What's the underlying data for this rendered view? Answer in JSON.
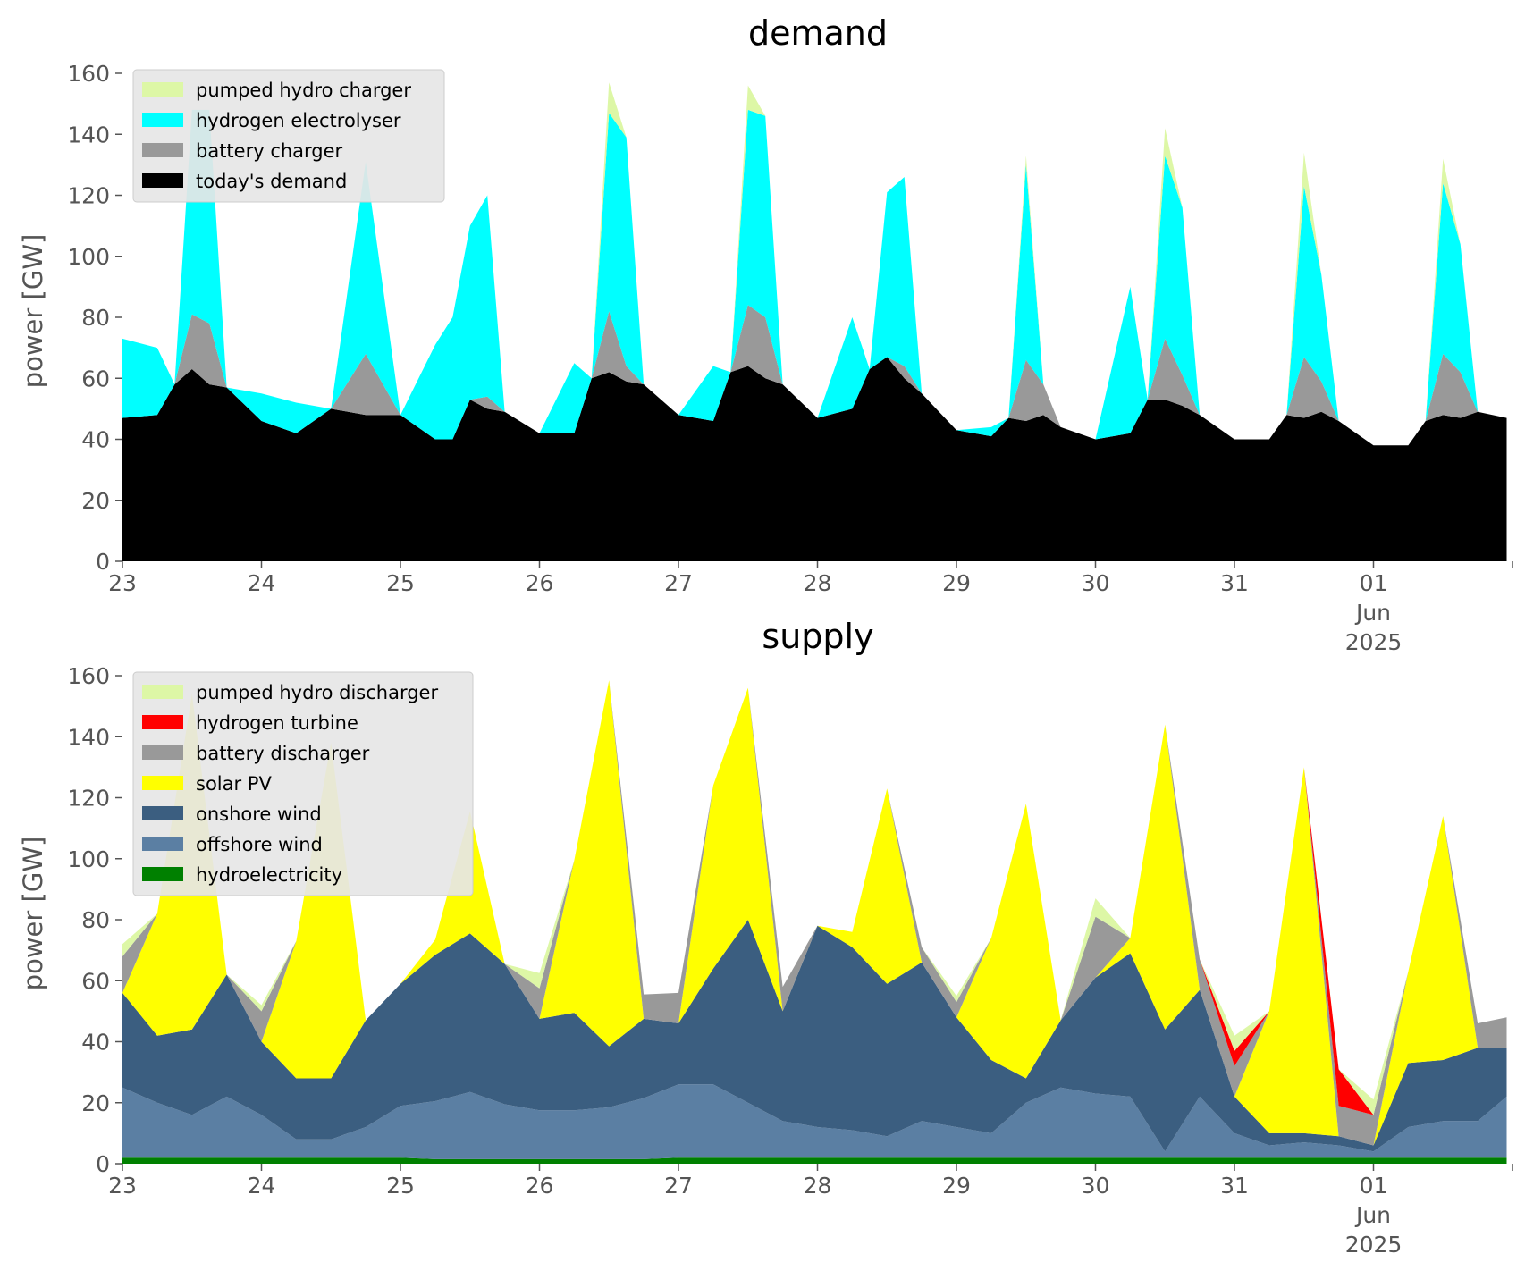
{
  "chart_data": [
    {
      "type": "area",
      "stacked": true,
      "title": "demand",
      "xlabel": "",
      "ylabel": "power [GW]",
      "ylim": [
        0,
        160
      ],
      "yticks": [
        0,
        20,
        40,
        60,
        80,
        100,
        120,
        140,
        160
      ],
      "xlim_days": [
        23,
        33
      ],
      "xtick_labels": [
        "23",
        "24",
        "25",
        "26",
        "27",
        "28",
        "29",
        "30",
        "31",
        "01",
        "Jun",
        "2025"
      ],
      "grid": false,
      "legend_position": "top-left",
      "x": [
        "May 23 00:00",
        "May 23 06:00",
        "May 23 09:00",
        "May 23 12:00",
        "May 23 15:00",
        "May 23 18:00",
        "May 24 00:00",
        "May 24 06:00",
        "May 24 12:00",
        "May 24 18:00",
        "May 25 00:00",
        "May 25 06:00",
        "May 25 09:00",
        "May 25 12:00",
        "May 25 15:00",
        "May 25 18:00",
        "May 26 00:00",
        "May 26 06:00",
        "May 26 09:00",
        "May 26 12:00",
        "May 26 15:00",
        "May 26 18:00",
        "May 27 00:00",
        "May 27 06:00",
        "May 27 09:00",
        "May 27 12:00",
        "May 27 15:00",
        "May 27 18:00",
        "May 28 00:00",
        "May 28 06:00",
        "May 28 09:00",
        "May 28 12:00",
        "May 28 15:00",
        "May 28 18:00",
        "May 29 00:00",
        "May 29 06:00",
        "May 29 09:00",
        "May 29 12:00",
        "May 29 15:00",
        "May 29 18:00",
        "May 30 00:00",
        "May 30 06:00",
        "May 30 09:00",
        "May 30 12:00",
        "May 30 15:00",
        "May 30 18:00",
        "May 31 00:00",
        "May 31 06:00",
        "May 31 09:00",
        "May 31 12:00",
        "May 31 15:00",
        "May 31 18:00",
        "Jun 01 00:00",
        "Jun 01 06:00",
        "Jun 01 09:00",
        "Jun 01 12:00",
        "Jun 01 15:00",
        "Jun 01 18:00",
        "Jun 01 23:00"
      ],
      "series": [
        {
          "name": "today's demand",
          "color": "#000000",
          "values": [
            47,
            48,
            58,
            63,
            58,
            57,
            46,
            42,
            50,
            48,
            48,
            40,
            40,
            53,
            50,
            49,
            42,
            42,
            60,
            62,
            59,
            58,
            48,
            46,
            62,
            64,
            60,
            58,
            47,
            50,
            63,
            67,
            60,
            55,
            43,
            41,
            47,
            46,
            48,
            44,
            40,
            42,
            53,
            53,
            51,
            48,
            40,
            40,
            48,
            47,
            49,
            46,
            38,
            38,
            46,
            48,
            47,
            49,
            47
          ]
        },
        {
          "name": "battery charger",
          "color": "#999999",
          "values": [
            0,
            0,
            0,
            18,
            20,
            0,
            0,
            0,
            0,
            20,
            0,
            0,
            0,
            0,
            4,
            0,
            0,
            0,
            0,
            20,
            5,
            0,
            0,
            0,
            0,
            20,
            20,
            0,
            0,
            0,
            0,
            0,
            4,
            0,
            0,
            0,
            0,
            20,
            10,
            0,
            0,
            0,
            0,
            20,
            10,
            0,
            0,
            0,
            0,
            20,
            10,
            0,
            0,
            0,
            0,
            20,
            15,
            0,
            0
          ]
        },
        {
          "name": "hydrogen electrolyser",
          "color": "#00ffff",
          "values": [
            26,
            22,
            0,
            67,
            70,
            0,
            9,
            10,
            0,
            63,
            0,
            31,
            40,
            57,
            66,
            0,
            0,
            23,
            0,
            65,
            75,
            0,
            0,
            18,
            0,
            64,
            66,
            0,
            0,
            30,
            0,
            54,
            62,
            0,
            0,
            3,
            0,
            64,
            0,
            0,
            0,
            48,
            0,
            60,
            55,
            0,
            0,
            0,
            0,
            56,
            35,
            0,
            0,
            0,
            0,
            56,
            42,
            0,
            0
          ]
        },
        {
          "name": "pumped hydro charger",
          "color": "#ddf7a6",
          "values": [
            0,
            0,
            0,
            0,
            0,
            0,
            0,
            0,
            0,
            0,
            0,
            0,
            0,
            0,
            0,
            0,
            0,
            0,
            0,
            10,
            0,
            0,
            0,
            0,
            0,
            8,
            0,
            0,
            0,
            0,
            0,
            0,
            0,
            0,
            0,
            0,
            0,
            3,
            0,
            0,
            0,
            0,
            0,
            9,
            0,
            0,
            0,
            0,
            0,
            11,
            0,
            0,
            0,
            0,
            0,
            8,
            0,
            0,
            0
          ]
        }
      ]
    },
    {
      "type": "area",
      "stacked": true,
      "title": "supply",
      "xlabel": "",
      "ylabel": "power [GW]",
      "ylim": [
        0,
        160
      ],
      "yticks": [
        0,
        20,
        40,
        60,
        80,
        100,
        120,
        140,
        160
      ],
      "xlim_days": [
        23,
        33
      ],
      "xtick_labels": [
        "23",
        "24",
        "25",
        "26",
        "27",
        "28",
        "29",
        "30",
        "31",
        "01",
        "Jun",
        "2025"
      ],
      "grid": false,
      "legend_position": "top-left",
      "x": [
        "May 23 00:00",
        "May 23 06:00",
        "May 23 12:00",
        "May 23 18:00",
        "May 24 00:00",
        "May 24 06:00",
        "May 24 12:00",
        "May 24 18:00",
        "May 25 00:00",
        "May 25 06:00",
        "May 25 12:00",
        "May 25 18:00",
        "May 26 00:00",
        "May 26 06:00",
        "May 26 12:00",
        "May 26 18:00",
        "May 27 00:00",
        "May 27 06:00",
        "May 27 12:00",
        "May 27 18:00",
        "May 28 00:00",
        "May 28 06:00",
        "May 28 12:00",
        "May 28 18:00",
        "May 29 00:00",
        "May 29 06:00",
        "May 29 12:00",
        "May 29 18:00",
        "May 30 00:00",
        "May 30 06:00",
        "May 30 12:00",
        "May 30 18:00",
        "May 31 00:00",
        "May 31 06:00",
        "May 31 12:00",
        "May 31 18:00",
        "Jun 01 00:00",
        "Jun 01 06:00",
        "Jun 01 12:00",
        "Jun 01 18:00",
        "Jun 01 23:00"
      ],
      "series": [
        {
          "name": "hydroelectricity",
          "color": "#008000",
          "values": [
            2,
            2,
            2,
            2,
            2,
            2,
            2,
            2,
            2,
            1.5,
            1.5,
            1.5,
            1.5,
            1.5,
            1.5,
            1.5,
            2,
            2,
            2,
            2,
            2,
            2,
            2,
            2,
            2,
            2,
            2,
            2,
            2,
            2,
            2,
            2,
            2,
            2,
            2,
            2,
            2,
            2,
            2,
            2,
            2
          ]
        },
        {
          "name": "offshore wind",
          "color": "#5b7fa3",
          "values": [
            23,
            18,
            14,
            20,
            14,
            6,
            6,
            10,
            17,
            19,
            22,
            18,
            16,
            16,
            17,
            20,
            24,
            24,
            18,
            12,
            10,
            9,
            7,
            12,
            10,
            8,
            18,
            23,
            21,
            20,
            2,
            20,
            8,
            4,
            5,
            4,
            2,
            10,
            12,
            12,
            20
          ]
        },
        {
          "name": "onshore wind",
          "color": "#3b5e80",
          "values": [
            31,
            22,
            28,
            40,
            24,
            20,
            20,
            35,
            40,
            48,
            52,
            46,
            30,
            32,
            20,
            26,
            20,
            38,
            60,
            36,
            66,
            60,
            50,
            52,
            36,
            24,
            8,
            22,
            38,
            47,
            40,
            35,
            12,
            4,
            3,
            3,
            2,
            21,
            20,
            24,
            16
          ]
        },
        {
          "name": "solar PV",
          "color": "#ffff00",
          "values": [
            0,
            40,
            110,
            0,
            0,
            45,
            110,
            0,
            0,
            5,
            40,
            0,
            0,
            50,
            120,
            0,
            0,
            60,
            76,
            0,
            0,
            5,
            64,
            0,
            0,
            40,
            90,
            0,
            0,
            5,
            100,
            0,
            0,
            40,
            120,
            0,
            0,
            30,
            80,
            0,
            0
          ]
        },
        {
          "name": "battery discharger",
          "color": "#999999",
          "values": [
            12,
            0,
            0,
            0,
            10,
            0,
            0,
            0,
            0,
            0,
            0,
            0,
            10,
            0,
            0,
            8,
            10,
            0,
            0,
            8,
            0,
            0,
            0,
            5,
            5,
            0,
            0,
            0,
            20,
            0,
            0,
            10,
            10,
            0,
            0,
            10,
            10,
            0,
            0,
            8,
            10
          ]
        },
        {
          "name": "hydrogen turbine",
          "color": "#ff0000",
          "values": [
            0,
            0,
            0,
            0,
            0,
            0,
            0,
            0,
            0,
            0,
            0,
            0,
            0,
            0,
            0,
            0,
            0,
            0,
            0,
            0,
            0,
            0,
            0,
            0,
            0,
            0,
            0,
            0,
            0,
            0,
            0,
            0,
            5,
            0,
            0,
            12,
            0,
            0,
            0,
            0,
            0
          ]
        },
        {
          "name": "pumped hydro discharger",
          "color": "#ddf7a6",
          "values": [
            4,
            0,
            0,
            0,
            2,
            0,
            0,
            0,
            0,
            0,
            0,
            0,
            5,
            0,
            0,
            0,
            0,
            0,
            0,
            0,
            0,
            0,
            0,
            0,
            2,
            0,
            0,
            0,
            6,
            0,
            0,
            0,
            5,
            0,
            0,
            0,
            5,
            0,
            0,
            0,
            0
          ]
        }
      ]
    }
  ]
}
